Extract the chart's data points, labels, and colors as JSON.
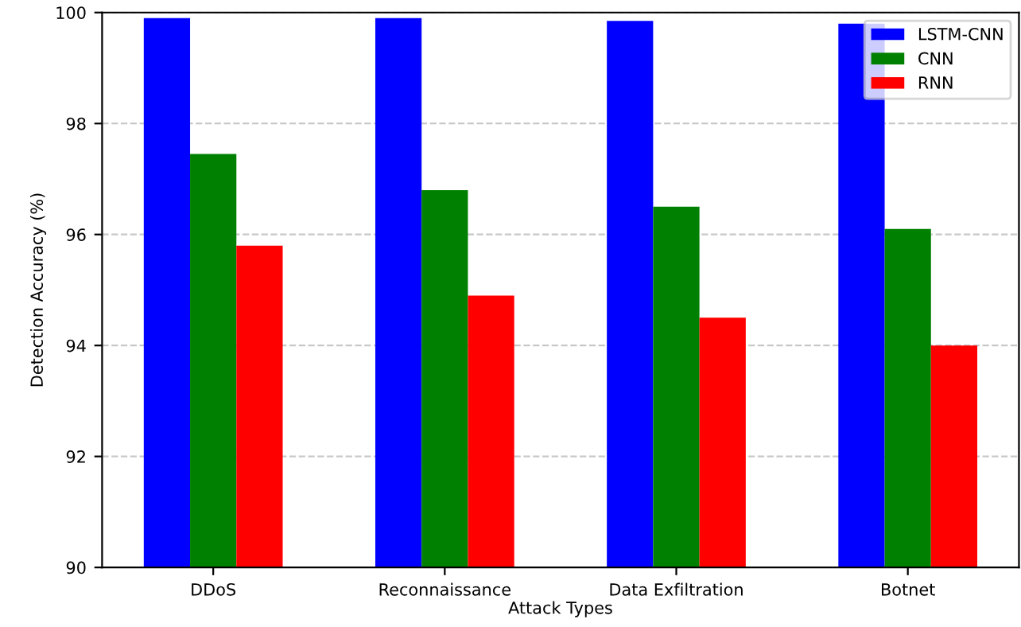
{
  "chart_data": {
    "type": "bar",
    "xlabel": "Attack Types",
    "ylabel": "Detection Accuracy (%)",
    "categories": [
      "DDoS",
      "Reconnaissance",
      "Data Exfiltration",
      "Botnet"
    ],
    "series": [
      {
        "name": "LSTM-CNN",
        "color": "#0000ff",
        "values": [
          99.9,
          99.9,
          99.85,
          99.8
        ]
      },
      {
        "name": "CNN",
        "color": "#008000",
        "values": [
          97.45,
          96.8,
          96.5,
          96.1
        ]
      },
      {
        "name": "RNN",
        "color": "#ff0000",
        "values": [
          95.8,
          94.9,
          94.5,
          94.0
        ]
      }
    ],
    "ylim": [
      90,
      100
    ],
    "yticks": [
      90,
      92,
      94,
      96,
      98,
      100
    ],
    "grid": "y",
    "legend": "top right"
  }
}
